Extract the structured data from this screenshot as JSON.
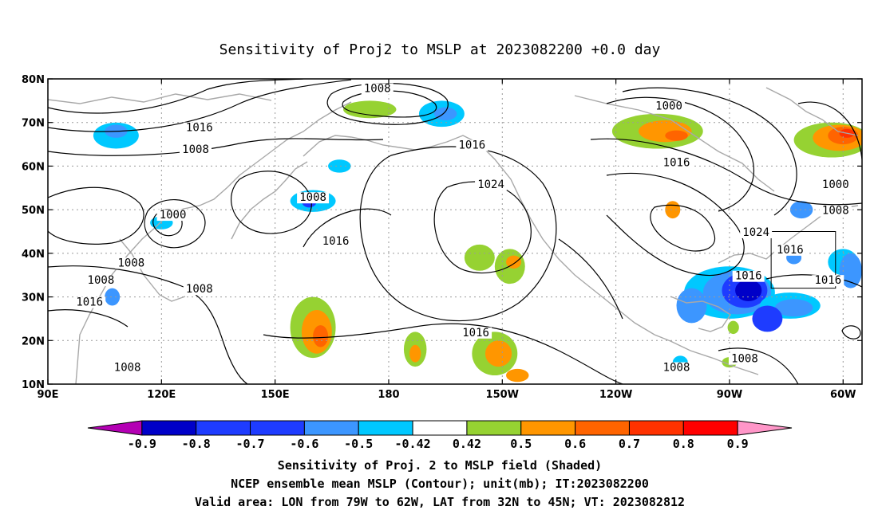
{
  "title": "Sensitivity of Proj2 to MSLP at 2023082200 +0.0 day",
  "map": {
    "lon_range": [
      90,
      305
    ],
    "lat_range": [
      10,
      80
    ],
    "lat_ticks": [
      {
        "lat": 80,
        "label": "80N"
      },
      {
        "lat": 70,
        "label": "70N"
      },
      {
        "lat": 60,
        "label": "60N"
      },
      {
        "lat": 50,
        "label": "50N"
      },
      {
        "lat": 40,
        "label": "40N"
      },
      {
        "lat": 30,
        "label": "30N"
      },
      {
        "lat": 20,
        "label": "20N"
      },
      {
        "lat": 10,
        "label": "10N"
      }
    ],
    "lon_ticks": [
      {
        "lon": 90,
        "label": "90E"
      },
      {
        "lon": 120,
        "label": "120E"
      },
      {
        "lon": 150,
        "label": "150E"
      },
      {
        "lon": 180,
        "label": "180"
      },
      {
        "lon": 210,
        "label": "150W"
      },
      {
        "lon": 240,
        "label": "120W"
      },
      {
        "lon": 270,
        "label": "90W"
      },
      {
        "lon": 300,
        "label": "60W"
      }
    ],
    "grid": "dotted",
    "valid_box": {
      "lon_min": 281,
      "lon_max": 298,
      "lat_min": 32,
      "lat_max": 45
    },
    "contour_labels": [
      {
        "text": "1008",
        "lon": 177,
        "lat": 77
      },
      {
        "text": "1016",
        "lon": 130,
        "lat": 68
      },
      {
        "text": "1008",
        "lon": 129,
        "lat": 63
      },
      {
        "text": "1000",
        "lon": 254,
        "lat": 73
      },
      {
        "text": "1016",
        "lon": 202,
        "lat": 64
      },
      {
        "text": "1016",
        "lon": 256,
        "lat": 60
      },
      {
        "text": "1024",
        "lon": 207,
        "lat": 55
      },
      {
        "text": "1000",
        "lon": 298,
        "lat": 55
      },
      {
        "text": "1008",
        "lon": 160,
        "lat": 52
      },
      {
        "text": "1008",
        "lon": 298,
        "lat": 49
      },
      {
        "text": "1000",
        "lon": 123,
        "lat": 48
      },
      {
        "text": "1024",
        "lon": 277,
        "lat": 44
      },
      {
        "text": "1016",
        "lon": 286,
        "lat": 40
      },
      {
        "text": "1016",
        "lon": 166,
        "lat": 42
      },
      {
        "text": "1008",
        "lon": 112,
        "lat": 37
      },
      {
        "text": "1016",
        "lon": 275,
        "lat": 34
      },
      {
        "text": "1008",
        "lon": 104,
        "lat": 33
      },
      {
        "text": "1016",
        "lon": 296,
        "lat": 33
      },
      {
        "text": "1008",
        "lon": 130,
        "lat": 31
      },
      {
        "text": "1016",
        "lon": 101,
        "lat": 28
      },
      {
        "text": "1016",
        "lon": 203,
        "lat": 21
      },
      {
        "text": "1008",
        "lon": 256,
        "lat": 13
      },
      {
        "text": "1008",
        "lon": 274,
        "lat": 15
      },
      {
        "text": "1008",
        "lon": 111,
        "lat": 13
      }
    ],
    "shaded_patches": [
      {
        "lon": 108,
        "lat": 67,
        "rx": 6,
        "ry": 3,
        "color": "#00c8ff"
      },
      {
        "lon": 108,
        "lat": 68,
        "rx": 3,
        "ry": 1.5,
        "color": "#3c96ff"
      },
      {
        "lon": 175,
        "lat": 73,
        "rx": 7,
        "ry": 2,
        "color": "#96d232"
      },
      {
        "lon": 194,
        "lat": 72,
        "rx": 6,
        "ry": 3,
        "color": "#00c8ff"
      },
      {
        "lon": 195,
        "lat": 72,
        "rx": 3,
        "ry": 1.5,
        "color": "#3c96ff"
      },
      {
        "lon": 160,
        "lat": 52,
        "rx": 6,
        "ry": 2.5,
        "color": "#00c8ff"
      },
      {
        "lon": 159,
        "lat": 52,
        "rx": 2,
        "ry": 1.5,
        "color": "#1e3cff"
      },
      {
        "lon": 167,
        "lat": 60,
        "rx": 3,
        "ry": 1.5,
        "color": "#00c8ff"
      },
      {
        "lon": 120,
        "lat": 47,
        "rx": 3,
        "ry": 1.5,
        "color": "#00c8ff"
      },
      {
        "lon": 107,
        "lat": 30,
        "rx": 2,
        "ry": 2,
        "color": "#3c96ff"
      },
      {
        "lon": 251,
        "lat": 68,
        "rx": 12,
        "ry": 4,
        "color": "#96d232"
      },
      {
        "lon": 253,
        "lat": 68,
        "rx": 7,
        "ry": 2.5,
        "color": "#ff9600"
      },
      {
        "lon": 256,
        "lat": 67,
        "rx": 3,
        "ry": 1.2,
        "color": "#ff6400"
      },
      {
        "lon": 297,
        "lat": 66,
        "rx": 10,
        "ry": 4,
        "color": "#96d232"
      },
      {
        "lon": 299,
        "lat": 66.5,
        "rx": 7,
        "ry": 3,
        "color": "#ff9600"
      },
      {
        "lon": 300,
        "lat": 67,
        "rx": 4,
        "ry": 2,
        "color": "#ff6400"
      },
      {
        "lon": 301,
        "lat": 67.5,
        "rx": 2,
        "ry": 1,
        "color": "#ff3200"
      },
      {
        "lon": 289,
        "lat": 50,
        "rx": 3,
        "ry": 2,
        "color": "#3c96ff"
      },
      {
        "lon": 255,
        "lat": 50,
        "rx": 2,
        "ry": 2,
        "color": "#ff9600"
      },
      {
        "lon": 204,
        "lat": 39,
        "rx": 4,
        "ry": 3,
        "color": "#96d232"
      },
      {
        "lon": 212,
        "lat": 37,
        "rx": 4,
        "ry": 4,
        "color": "#96d232"
      },
      {
        "lon": 213,
        "lat": 38,
        "rx": 2,
        "ry": 1.5,
        "color": "#ff9600"
      },
      {
        "lon": 160,
        "lat": 23,
        "rx": 6,
        "ry": 7,
        "color": "#96d232"
      },
      {
        "lon": 161,
        "lat": 22,
        "rx": 4,
        "ry": 5,
        "color": "#ff9600"
      },
      {
        "lon": 162,
        "lat": 21,
        "rx": 2,
        "ry": 2.5,
        "color": "#ff6400"
      },
      {
        "lon": 187,
        "lat": 18,
        "rx": 3,
        "ry": 4,
        "color": "#96d232"
      },
      {
        "lon": 187,
        "lat": 17,
        "rx": 1.5,
        "ry": 2,
        "color": "#ff9600"
      },
      {
        "lon": 208,
        "lat": 17,
        "rx": 6,
        "ry": 5,
        "color": "#96d232"
      },
      {
        "lon": 209,
        "lat": 17,
        "rx": 3.5,
        "ry": 3,
        "color": "#ff9600"
      },
      {
        "lon": 214,
        "lat": 12,
        "rx": 3,
        "ry": 1.5,
        "color": "#ff9600"
      },
      {
        "lon": 270,
        "lat": 31,
        "rx": 12,
        "ry": 6,
        "color": "#00c8ff"
      },
      {
        "lon": 272,
        "lat": 31,
        "rx": 9,
        "ry": 5,
        "color": "#3c96ff"
      },
      {
        "lon": 274,
        "lat": 31.5,
        "rx": 6,
        "ry": 4,
        "color": "#1e3cff"
      },
      {
        "lon": 275,
        "lat": 31.5,
        "rx": 3.5,
        "ry": 2.5,
        "color": "#0000c8"
      },
      {
        "lon": 286,
        "lat": 28,
        "rx": 8,
        "ry": 3,
        "color": "#00c8ff"
      },
      {
        "lon": 287,
        "lat": 27.5,
        "rx": 5,
        "ry": 2,
        "color": "#3c96ff"
      },
      {
        "lon": 280,
        "lat": 25,
        "rx": 4,
        "ry": 3,
        "color": "#1e3cff"
      },
      {
        "lon": 260,
        "lat": 28,
        "rx": 4,
        "ry": 4,
        "color": "#3c96ff"
      },
      {
        "lon": 300,
        "lat": 38,
        "rx": 4,
        "ry": 3,
        "color": "#00c8ff"
      },
      {
        "lon": 302,
        "lat": 36,
        "rx": 3,
        "ry": 4,
        "color": "#3c96ff"
      },
      {
        "lon": 287,
        "lat": 39,
        "rx": 2,
        "ry": 1.5,
        "color": "#3c96ff"
      },
      {
        "lon": 257,
        "lat": 15,
        "rx": 2,
        "ry": 1.5,
        "color": "#00c8ff"
      },
      {
        "lon": 271,
        "lat": 23,
        "rx": 1.5,
        "ry": 1.5,
        "color": "#96d232"
      },
      {
        "lon": 270,
        "lat": 15,
        "rx": 2,
        "ry": 1.2,
        "color": "#96d232"
      }
    ]
  },
  "colorbar": {
    "levels": [
      "-0.9",
      "-0.8",
      "-0.7",
      "-0.6",
      "-0.5",
      "-0.42",
      "0.42",
      "0.5",
      "0.6",
      "0.7",
      "0.8",
      "0.9"
    ],
    "colors": [
      "#b400b4",
      "#0000c8",
      "#1e3cff",
      "#1e3cff",
      "#3c96ff",
      "#00c8ff",
      "#ffffff",
      "#96d232",
      "#ff9600",
      "#ff6400",
      "#ff3200",
      "#ff0000",
      "#ff96c8"
    ]
  },
  "captions": [
    "Sensitivity of Proj. 2 to MSLP field (Shaded)",
    "NCEP ensemble mean MSLP (Contour); unit(mb); IT:2023082200",
    "Valid area: LON from 79W to 62W, LAT from 32N to 45N; VT: 2023082812"
  ]
}
